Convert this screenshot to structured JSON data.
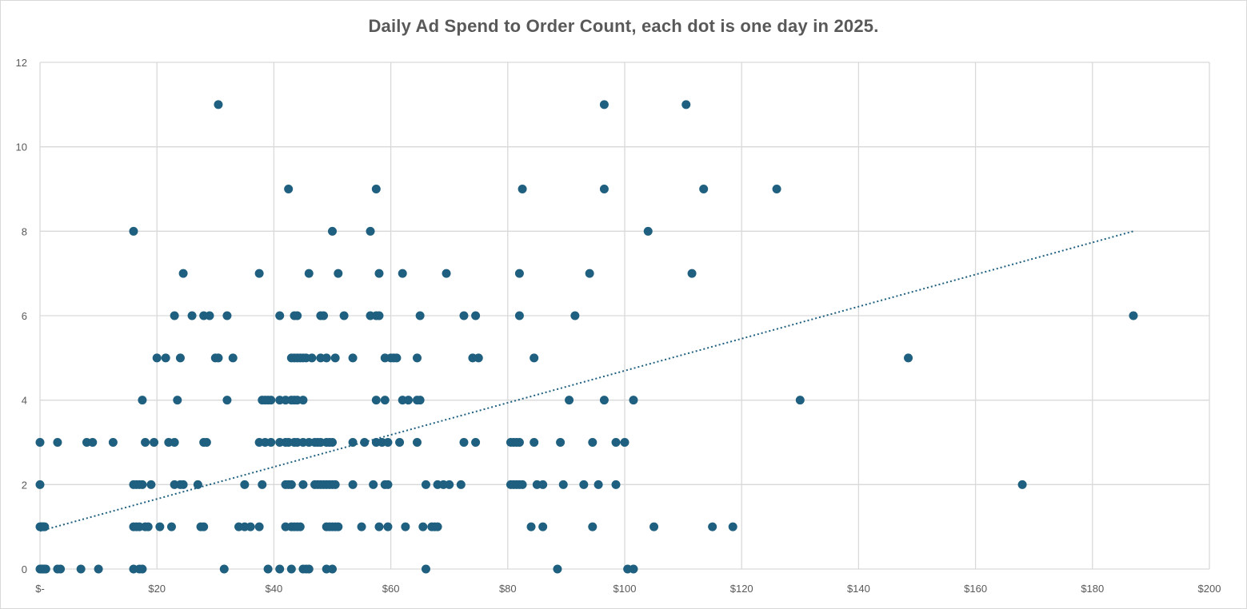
{
  "chart_data": {
    "type": "scatter",
    "title": "Daily Ad Spend to Order Count, each dot is one day in 2025.",
    "xlabel": "",
    "ylabel": "",
    "xlim": [
      0,
      200
    ],
    "ylim": [
      0,
      12
    ],
    "x_ticks": [
      0,
      20,
      40,
      60,
      80,
      100,
      120,
      140,
      160,
      180,
      200
    ],
    "x_tick_labels": [
      "$-",
      "$20",
      "$40",
      "$60",
      "$80",
      "$100",
      "$120",
      "$140",
      "$160",
      "$180",
      "$200"
    ],
    "y_ticks": [
      0,
      2,
      4,
      6,
      8,
      10,
      12
    ],
    "y_tick_labels": [
      "0",
      "2",
      "4",
      "6",
      "8",
      "10",
      "12"
    ],
    "grid": true,
    "legend": "none",
    "marker_color": "#1f5f7f",
    "trendline": {
      "type": "linear",
      "style": "dotted",
      "color": "#1f5f7f",
      "x": [
        0,
        187
      ],
      "y": [
        0.9,
        8.0
      ]
    },
    "series": [
      {
        "points": [
          [
            0,
            0
          ],
          [
            0.2,
            0
          ],
          [
            0.4,
            0
          ],
          [
            0.6,
            0
          ],
          [
            0.8,
            0
          ],
          [
            1,
            0
          ],
          [
            3,
            0
          ],
          [
            3.5,
            0
          ],
          [
            7,
            0
          ],
          [
            10,
            0
          ],
          [
            16,
            0
          ],
          [
            17,
            0
          ],
          [
            17.5,
            0
          ],
          [
            31.5,
            0
          ],
          [
            39,
            0
          ],
          [
            41,
            0
          ],
          [
            43,
            0
          ],
          [
            45,
            0
          ],
          [
            45.5,
            0
          ],
          [
            46,
            0
          ],
          [
            49,
            0
          ],
          [
            50,
            0
          ],
          [
            66,
            0
          ],
          [
            88.5,
            0
          ],
          [
            100.5,
            0
          ],
          [
            101.5,
            0
          ],
          [
            0,
            1
          ],
          [
            0.2,
            1
          ],
          [
            0.4,
            1
          ],
          [
            0.6,
            1
          ],
          [
            0.8,
            1
          ],
          [
            16,
            1
          ],
          [
            16.5,
            1
          ],
          [
            17,
            1
          ],
          [
            18,
            1
          ],
          [
            18.5,
            1
          ],
          [
            20.5,
            1
          ],
          [
            22.5,
            1
          ],
          [
            27.5,
            1
          ],
          [
            28,
            1
          ],
          [
            34,
            1
          ],
          [
            35,
            1
          ],
          [
            36,
            1
          ],
          [
            37.5,
            1
          ],
          [
            42,
            1
          ],
          [
            43,
            1
          ],
          [
            43.5,
            1
          ],
          [
            44,
            1
          ],
          [
            44.5,
            1
          ],
          [
            49,
            1
          ],
          [
            49.5,
            1
          ],
          [
            50,
            1
          ],
          [
            50.5,
            1
          ],
          [
            51,
            1
          ],
          [
            55,
            1
          ],
          [
            58,
            1
          ],
          [
            59.5,
            1
          ],
          [
            62.5,
            1
          ],
          [
            65.5,
            1
          ],
          [
            67,
            1
          ],
          [
            67.5,
            1
          ],
          [
            68,
            1
          ],
          [
            84,
            1
          ],
          [
            86,
            1
          ],
          [
            94.5,
            1
          ],
          [
            105,
            1
          ],
          [
            115,
            1
          ],
          [
            118.5,
            1
          ],
          [
            0,
            2
          ],
          [
            16,
            2
          ],
          [
            16.5,
            2
          ],
          [
            17,
            2
          ],
          [
            17.5,
            2
          ],
          [
            19,
            2
          ],
          [
            23,
            2
          ],
          [
            24,
            2
          ],
          [
            24.5,
            2
          ],
          [
            27,
            2
          ],
          [
            35,
            2
          ],
          [
            38,
            2
          ],
          [
            42,
            2
          ],
          [
            42.5,
            2
          ],
          [
            43,
            2
          ],
          [
            45,
            2
          ],
          [
            47,
            2
          ],
          [
            47.5,
            2
          ],
          [
            48,
            2
          ],
          [
            48.5,
            2
          ],
          [
            49,
            2
          ],
          [
            49.5,
            2
          ],
          [
            50,
            2
          ],
          [
            50.5,
            2
          ],
          [
            53.5,
            2
          ],
          [
            57,
            2
          ],
          [
            59,
            2
          ],
          [
            59.5,
            2
          ],
          [
            66,
            2
          ],
          [
            68,
            2
          ],
          [
            69,
            2
          ],
          [
            70,
            2
          ],
          [
            72,
            2
          ],
          [
            80.5,
            2
          ],
          [
            81,
            2
          ],
          [
            81.5,
            2
          ],
          [
            82,
            2
          ],
          [
            82.5,
            2
          ],
          [
            85,
            2
          ],
          [
            86,
            2
          ],
          [
            89.5,
            2
          ],
          [
            93,
            2
          ],
          [
            95.5,
            2
          ],
          [
            98.5,
            2
          ],
          [
            168,
            2
          ],
          [
            0,
            3
          ],
          [
            3,
            3
          ],
          [
            8,
            3
          ],
          [
            9,
            3
          ],
          [
            12.5,
            3
          ],
          [
            18,
            3
          ],
          [
            19.5,
            3
          ],
          [
            22,
            3
          ],
          [
            23,
            3
          ],
          [
            28,
            3
          ],
          [
            28.5,
            3
          ],
          [
            37.5,
            3
          ],
          [
            38.5,
            3
          ],
          [
            39.5,
            3
          ],
          [
            41,
            3
          ],
          [
            42,
            3
          ],
          [
            42.5,
            3
          ],
          [
            43.5,
            3
          ],
          [
            44,
            3
          ],
          [
            45,
            3
          ],
          [
            46,
            3
          ],
          [
            47,
            3
          ],
          [
            47.5,
            3
          ],
          [
            48,
            3
          ],
          [
            49,
            3
          ],
          [
            49.5,
            3
          ],
          [
            50,
            3
          ],
          [
            53.5,
            3
          ],
          [
            55.5,
            3
          ],
          [
            57.5,
            3
          ],
          [
            58.5,
            3
          ],
          [
            59.5,
            3
          ],
          [
            61.5,
            3
          ],
          [
            64.5,
            3
          ],
          [
            72.5,
            3
          ],
          [
            74.5,
            3
          ],
          [
            80.5,
            3
          ],
          [
            81,
            3
          ],
          [
            81.5,
            3
          ],
          [
            82,
            3
          ],
          [
            84.5,
            3
          ],
          [
            89,
            3
          ],
          [
            94.5,
            3
          ],
          [
            98.5,
            3
          ],
          [
            100,
            3
          ],
          [
            17.5,
            4
          ],
          [
            23.5,
            4
          ],
          [
            32,
            4
          ],
          [
            38,
            4
          ],
          [
            38.5,
            4
          ],
          [
            39,
            4
          ],
          [
            39.5,
            4
          ],
          [
            41,
            4
          ],
          [
            42,
            4
          ],
          [
            43,
            4
          ],
          [
            43.5,
            4
          ],
          [
            44,
            4
          ],
          [
            45,
            4
          ],
          [
            57.5,
            4
          ],
          [
            59,
            4
          ],
          [
            62,
            4
          ],
          [
            63,
            4
          ],
          [
            64.5,
            4
          ],
          [
            65,
            4
          ],
          [
            90.5,
            4
          ],
          [
            96.5,
            4
          ],
          [
            101.5,
            4
          ],
          [
            130,
            4
          ],
          [
            20,
            5
          ],
          [
            21.5,
            5
          ],
          [
            24,
            5
          ],
          [
            30,
            5
          ],
          [
            30.5,
            5
          ],
          [
            33,
            5
          ],
          [
            43,
            5
          ],
          [
            43.5,
            5
          ],
          [
            44,
            5
          ],
          [
            44.5,
            5
          ],
          [
            45,
            5
          ],
          [
            45.5,
            5
          ],
          [
            46.5,
            5
          ],
          [
            48,
            5
          ],
          [
            49,
            5
          ],
          [
            50.5,
            5
          ],
          [
            53.5,
            5
          ],
          [
            59,
            5
          ],
          [
            60,
            5
          ],
          [
            60.5,
            5
          ],
          [
            61,
            5
          ],
          [
            64.5,
            5
          ],
          [
            74,
            5
          ],
          [
            75,
            5
          ],
          [
            84.5,
            5
          ],
          [
            148.5,
            5
          ],
          [
            23,
            6
          ],
          [
            26,
            6
          ],
          [
            28,
            6
          ],
          [
            29,
            6
          ],
          [
            32,
            6
          ],
          [
            41,
            6
          ],
          [
            43.5,
            6
          ],
          [
            44,
            6
          ],
          [
            48,
            6
          ],
          [
            48.5,
            6
          ],
          [
            52,
            6
          ],
          [
            56.5,
            6
          ],
          [
            57.5,
            6
          ],
          [
            58,
            6
          ],
          [
            65,
            6
          ],
          [
            72.5,
            6
          ],
          [
            74.5,
            6
          ],
          [
            82,
            6
          ],
          [
            91.5,
            6
          ],
          [
            187,
            6
          ],
          [
            24.5,
            7
          ],
          [
            37.5,
            7
          ],
          [
            46,
            7
          ],
          [
            51,
            7
          ],
          [
            58,
            7
          ],
          [
            62,
            7
          ],
          [
            69.5,
            7
          ],
          [
            82,
            7
          ],
          [
            94,
            7
          ],
          [
            111.5,
            7
          ],
          [
            16,
            8
          ],
          [
            50,
            8
          ],
          [
            56.5,
            8
          ],
          [
            104,
            8
          ],
          [
            42.5,
            9
          ],
          [
            57.5,
            9
          ],
          [
            82.5,
            9
          ],
          [
            96.5,
            9
          ],
          [
            113.5,
            9
          ],
          [
            126,
            9
          ],
          [
            30.5,
            11
          ],
          [
            96.5,
            11
          ],
          [
            110.5,
            11
          ]
        ]
      }
    ]
  }
}
